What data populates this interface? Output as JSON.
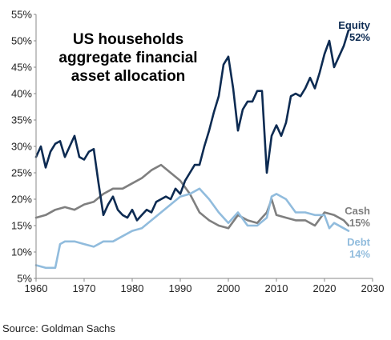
{
  "source": "Source: Goldman Sachs",
  "chart_data": {
    "type": "line",
    "title_lines": [
      "US households",
      "aggregate financial",
      "asset allocation"
    ],
    "xlim": [
      1960,
      2030
    ],
    "ylim": [
      5,
      55
    ],
    "x_ticks": [
      1960,
      1970,
      1980,
      1990,
      2000,
      2010,
      2020,
      2030
    ],
    "x_tick_labels": [
      "1960",
      "1970",
      "1980",
      "1990",
      "2000",
      "2010",
      "2020",
      "2030"
    ],
    "y_ticks": [
      5,
      10,
      15,
      20,
      25,
      30,
      35,
      40,
      45,
      50,
      55
    ],
    "y_tick_labels": [
      "5%",
      "10%",
      "15%",
      "20%",
      "25%",
      "30%",
      "35%",
      "40%",
      "45%",
      "50%",
      "55%"
    ],
    "grid": false,
    "series": [
      {
        "name": "Equity",
        "end_label": "52%",
        "color": "#0d2b52",
        "points": [
          [
            1960,
            28
          ],
          [
            1961,
            30
          ],
          [
            1962,
            26
          ],
          [
            1963,
            29
          ],
          [
            1964,
            30.5
          ],
          [
            1965,
            31
          ],
          [
            1966,
            28
          ],
          [
            1967,
            30
          ],
          [
            1968,
            32
          ],
          [
            1969,
            28
          ],
          [
            1970,
            27.5
          ],
          [
            1971,
            29
          ],
          [
            1972,
            29.5
          ],
          [
            1973,
            23
          ],
          [
            1974,
            17
          ],
          [
            1975,
            19
          ],
          [
            1976,
            20.5
          ],
          [
            1977,
            18
          ],
          [
            1978,
            17
          ],
          [
            1979,
            16.5
          ],
          [
            1980,
            18
          ],
          [
            1981,
            16
          ],
          [
            1982,
            17
          ],
          [
            1983,
            18
          ],
          [
            1984,
            17.5
          ],
          [
            1985,
            19.5
          ],
          [
            1986,
            20
          ],
          [
            1987,
            20.5
          ],
          [
            1988,
            20
          ],
          [
            1989,
            22
          ],
          [
            1990,
            21
          ],
          [
            1991,
            23.5
          ],
          [
            1992,
            25
          ],
          [
            1993,
            26.5
          ],
          [
            1994,
            26.5
          ],
          [
            1995,
            30
          ],
          [
            1996,
            33
          ],
          [
            1997,
            36.5
          ],
          [
            1998,
            39.5
          ],
          [
            1999,
            45.5
          ],
          [
            2000,
            47
          ],
          [
            2001,
            41
          ],
          [
            2002,
            33
          ],
          [
            2003,
            37
          ],
          [
            2004,
            38.5
          ],
          [
            2005,
            38.5
          ],
          [
            2006,
            40.5
          ],
          [
            2007,
            40.5
          ],
          [
            2008,
            25
          ],
          [
            2009,
            32
          ],
          [
            2010,
            34
          ],
          [
            2011,
            32
          ],
          [
            2012,
            34.5
          ],
          [
            2013,
            39.5
          ],
          [
            2014,
            40
          ],
          [
            2015,
            39.5
          ],
          [
            2016,
            41
          ],
          [
            2017,
            43
          ],
          [
            2018,
            41
          ],
          [
            2019,
            44
          ],
          [
            2020,
            47.5
          ],
          [
            2021,
            50
          ],
          [
            2022,
            45
          ],
          [
            2023,
            47
          ],
          [
            2024,
            49
          ],
          [
            2025,
            52
          ]
        ]
      },
      {
        "name": "Cash",
        "end_label": "15%",
        "color": "#7f7f7f",
        "points": [
          [
            1960,
            16.5
          ],
          [
            1962,
            17
          ],
          [
            1964,
            18
          ],
          [
            1966,
            18.5
          ],
          [
            1968,
            18
          ],
          [
            1970,
            19
          ],
          [
            1972,
            19.5
          ],
          [
            1974,
            21
          ],
          [
            1976,
            22
          ],
          [
            1978,
            22
          ],
          [
            1980,
            23
          ],
          [
            1982,
            24
          ],
          [
            1984,
            25.5
          ],
          [
            1986,
            26.5
          ],
          [
            1988,
            25
          ],
          [
            1990,
            23.5
          ],
          [
            1992,
            21
          ],
          [
            1994,
            17.5
          ],
          [
            1996,
            16
          ],
          [
            1998,
            15
          ],
          [
            2000,
            14.5
          ],
          [
            2002,
            17
          ],
          [
            2004,
            16
          ],
          [
            2006,
            15.5
          ],
          [
            2008,
            17.5
          ],
          [
            2009,
            20
          ],
          [
            2010,
            17
          ],
          [
            2012,
            16.5
          ],
          [
            2014,
            16
          ],
          [
            2016,
            16
          ],
          [
            2018,
            15
          ],
          [
            2020,
            17.5
          ],
          [
            2022,
            17
          ],
          [
            2024,
            16
          ],
          [
            2025,
            15
          ]
        ]
      },
      {
        "name": "Debt",
        "end_label": "14%",
        "color": "#91bcdd",
        "points": [
          [
            1960,
            7.5
          ],
          [
            1962,
            7
          ],
          [
            1964,
            7
          ],
          [
            1965,
            11.5
          ],
          [
            1966,
            12
          ],
          [
            1968,
            12
          ],
          [
            1970,
            11.5
          ],
          [
            1972,
            11
          ],
          [
            1974,
            12
          ],
          [
            1976,
            12
          ],
          [
            1978,
            13
          ],
          [
            1980,
            14
          ],
          [
            1982,
            14.5
          ],
          [
            1984,
            16
          ],
          [
            1986,
            17.5
          ],
          [
            1988,
            19
          ],
          [
            1990,
            20.5
          ],
          [
            1992,
            21
          ],
          [
            1994,
            22
          ],
          [
            1996,
            20
          ],
          [
            1998,
            17.5
          ],
          [
            2000,
            15.5
          ],
          [
            2002,
            17.5
          ],
          [
            2004,
            15
          ],
          [
            2006,
            15
          ],
          [
            2008,
            16.5
          ],
          [
            2009,
            20.5
          ],
          [
            2010,
            21
          ],
          [
            2012,
            20
          ],
          [
            2014,
            17.5
          ],
          [
            2016,
            17.5
          ],
          [
            2018,
            17
          ],
          [
            2020,
            17
          ],
          [
            2021,
            14.5
          ],
          [
            2022,
            15.5
          ],
          [
            2024,
            14.5
          ],
          [
            2025,
            14
          ]
        ]
      }
    ]
  }
}
